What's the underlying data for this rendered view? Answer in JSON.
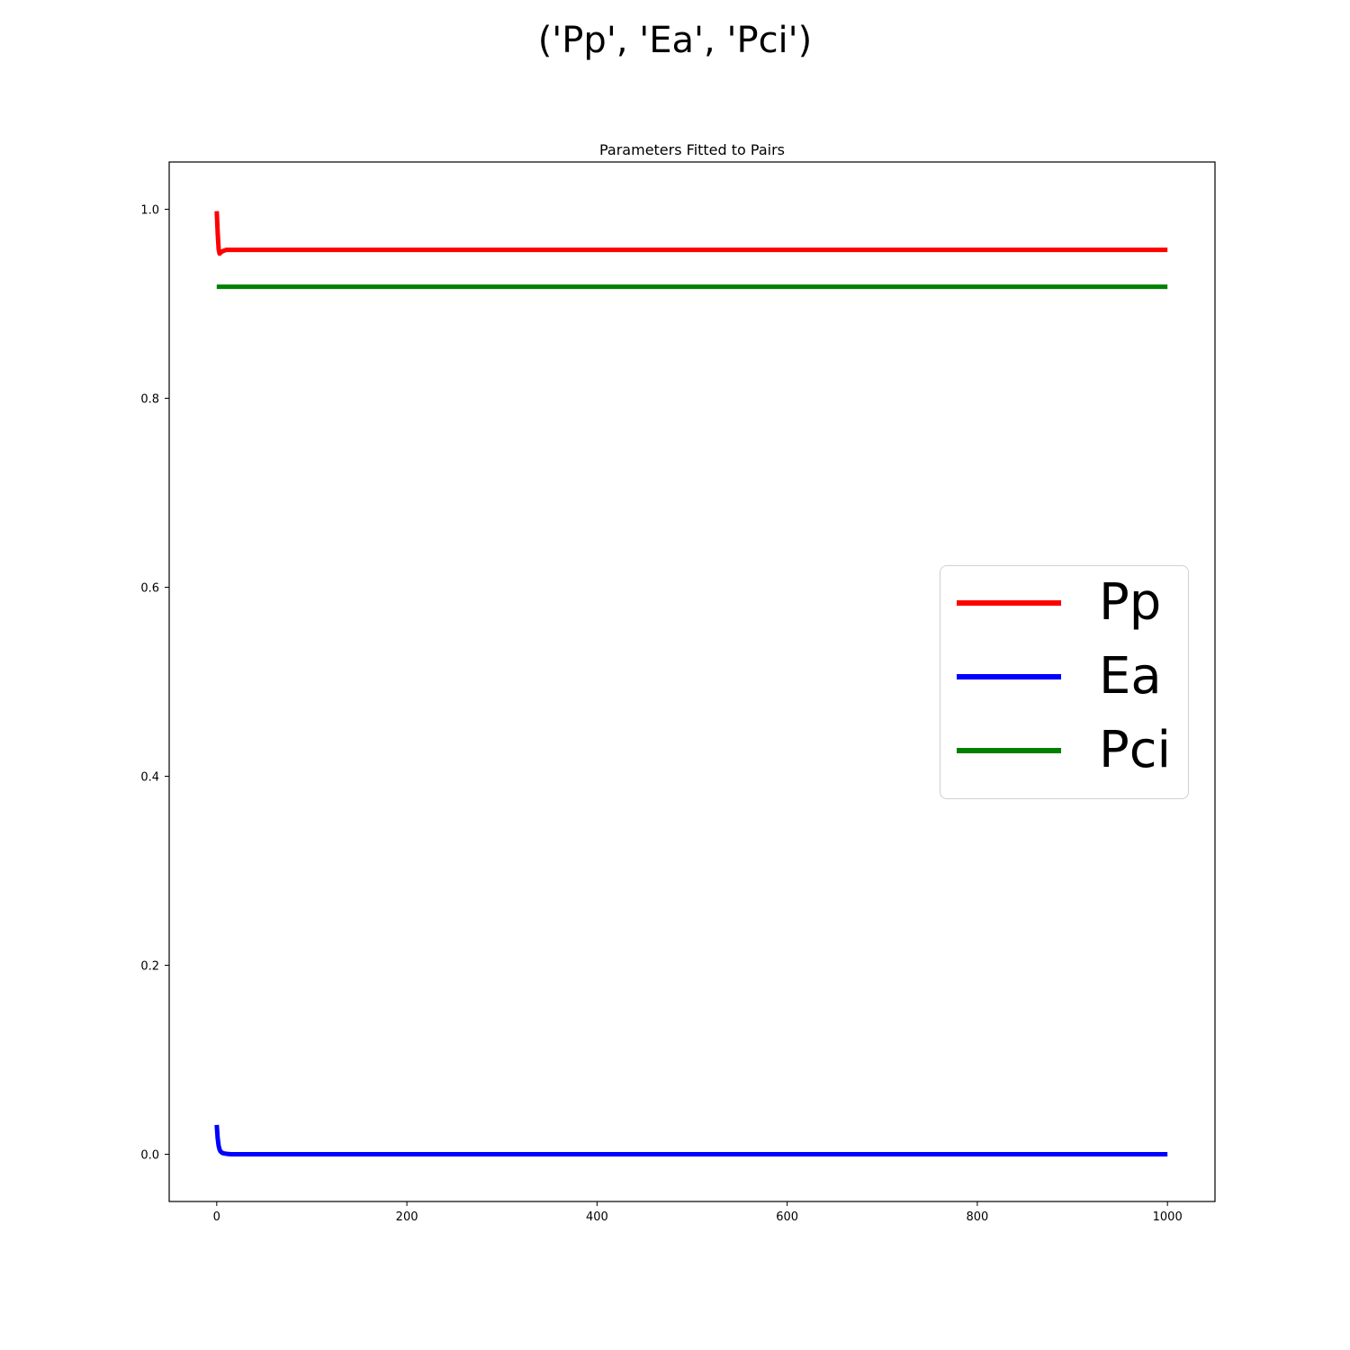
{
  "figure": {
    "suptitle": "('Pp', 'Ea', 'Pci')"
  },
  "chart_data": {
    "type": "line",
    "title": "Parameters Fitted to Pairs",
    "xlabel": "",
    "ylabel": "",
    "xlim": [
      -50,
      1050
    ],
    "ylim": [
      -0.05,
      1.05
    ],
    "xticks": [
      0,
      200,
      400,
      600,
      800,
      1000
    ],
    "xtick_labels": [
      "0",
      "200",
      "400",
      "600",
      "800",
      "1000"
    ],
    "yticks": [
      0.0,
      0.2,
      0.4,
      0.6,
      0.8,
      1.0
    ],
    "ytick_labels": [
      "0.0",
      "0.2",
      "0.4",
      "0.6",
      "0.8",
      "1.0"
    ],
    "grid": false,
    "legend_position": "center-right",
    "series": [
      {
        "name": "Pp",
        "color": "#ff0000",
        "x": [
          0,
          1,
          2,
          3,
          4,
          5,
          7,
          10,
          15,
          30,
          100,
          500,
          1000
        ],
        "y": [
          0.998,
          0.975,
          0.958,
          0.953,
          0.954,
          0.955,
          0.956,
          0.957,
          0.957,
          0.957,
          0.957,
          0.957,
          0.957
        ]
      },
      {
        "name": "Ea",
        "color": "#0000ff",
        "x": [
          0,
          1,
          2,
          3,
          4,
          5,
          7,
          10,
          15,
          30,
          100,
          500,
          1000
        ],
        "y": [
          0.031,
          0.017,
          0.009,
          0.005,
          0.003,
          0.002,
          0.001,
          0.0005,
          0.0,
          0.0,
          0.0,
          0.0,
          0.0
        ]
      },
      {
        "name": "Pci",
        "color": "#008000",
        "x": [
          0,
          1000
        ],
        "y": [
          0.918,
          0.918
        ]
      }
    ]
  }
}
